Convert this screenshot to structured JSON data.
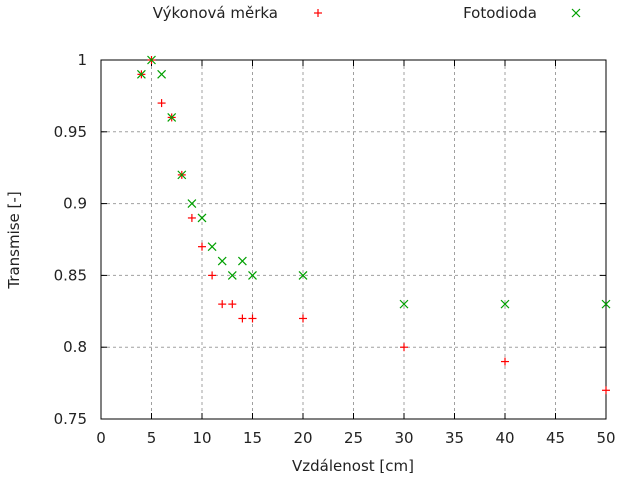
{
  "chart_data": {
    "type": "scatter",
    "xlabel": "Vzdálenost [cm]",
    "ylabel": "Transmise [-]",
    "xlim": [
      0,
      50
    ],
    "ylim": [
      0.75,
      1
    ],
    "xticks": [
      0,
      5,
      10,
      15,
      20,
      25,
      30,
      35,
      40,
      45,
      50
    ],
    "yticks": [
      0.75,
      0.8,
      0.85,
      0.9,
      0.95,
      1
    ],
    "ytick_labels": [
      "0.75",
      "0.8",
      "0.85",
      "0.9",
      "0.95",
      "1"
    ],
    "grid": true,
    "legend_placement": "top",
    "series": [
      {
        "name": "Výkonová měrka",
        "marker": "plus",
        "color": "#ff0000",
        "x": [
          4,
          5,
          6,
          7,
          8,
          9,
          10,
          11,
          12,
          13,
          14,
          15,
          20,
          30,
          40,
          50
        ],
        "y": [
          0.99,
          1.0,
          0.97,
          0.96,
          0.92,
          0.89,
          0.87,
          0.85,
          0.83,
          0.83,
          0.82,
          0.82,
          0.82,
          0.8,
          0.79,
          0.77
        ]
      },
      {
        "name": "Fotodioda",
        "marker": "cross",
        "color": "#00a000",
        "x": [
          4,
          5,
          6,
          7,
          8,
          9,
          10,
          11,
          12,
          13,
          14,
          15,
          20,
          30,
          40,
          50
        ],
        "y": [
          0.99,
          1.0,
          0.99,
          0.96,
          0.92,
          0.9,
          0.89,
          0.87,
          0.86,
          0.85,
          0.86,
          0.85,
          0.85,
          0.83,
          0.83,
          0.83
        ]
      }
    ]
  }
}
